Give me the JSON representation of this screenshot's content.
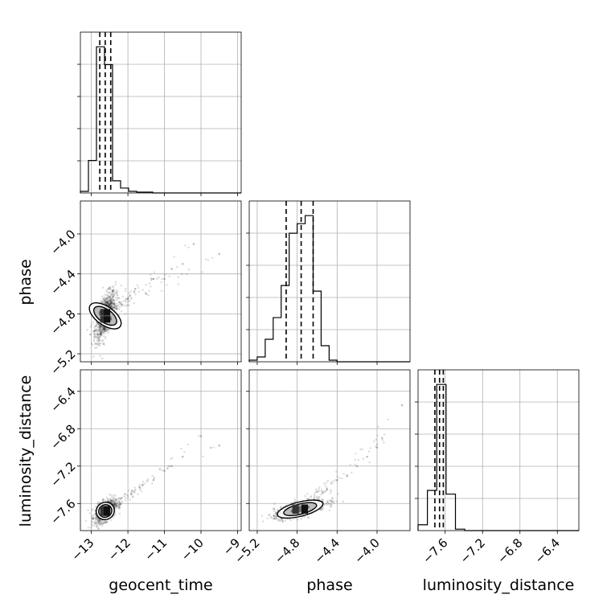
{
  "chart_data": {
    "type": "corner",
    "parameters": [
      "geocent_time",
      "phase",
      "luminosity_distance"
    ],
    "labels": {
      "x": [
        "geocent_time",
        "phase",
        "luminosity_distance"
      ],
      "y": [
        "phase",
        "luminosity_distance"
      ]
    },
    "ranges": {
      "geocent_time": [
        -13.3,
        -8.9
      ],
      "phase": [
        -5.28,
        -3.67
      ],
      "luminosity_distance": [
        -7.89,
        -6.17
      ]
    },
    "ticks": {
      "geocent_time": {
        "values": [
          -13,
          -12,
          -11,
          -10,
          -9
        ],
        "labels": [
          "−13",
          "−12",
          "−11",
          "−10",
          "−9"
        ]
      },
      "phase": {
        "values": [
          -5.2,
          -4.8,
          -4.4,
          -4.0
        ],
        "labels": [
          "−5.2",
          "−4.8",
          "−4.4",
          "−4.0"
        ]
      },
      "luminosity_distance": {
        "values": [
          -7.6,
          -7.2,
          -6.8,
          -6.4
        ],
        "labels": [
          "−7.6",
          "−7.2",
          "−6.8",
          "−6.4"
        ]
      }
    },
    "grid": true,
    "histograms": [
      {
        "param": "geocent_time",
        "bin_edges": [
          -13.3,
          -13.08,
          -12.86,
          -12.64,
          -12.42,
          -12.2,
          -11.98,
          -11.76,
          -11.54,
          -11.32,
          -11.1
        ],
        "counts": [
          2,
          40,
          180,
          158,
          15,
          6,
          2,
          1,
          1,
          0
        ],
        "quantiles": [
          -12.77,
          -12.62,
          -12.47
        ]
      },
      {
        "param": "phase",
        "bin_edges": [
          -5.28,
          -5.2,
          -5.12,
          -5.04,
          -4.96,
          -4.88,
          -4.8,
          -4.72,
          -4.64,
          -4.56,
          -4.48,
          -4.4,
          -4.32
        ],
        "counts": [
          2,
          6,
          28,
          55,
          95,
          160,
          172,
          182,
          88,
          20,
          2,
          0
        ],
        "quantiles": [
          -4.91,
          -4.76,
          -4.64
        ]
      },
      {
        "param": "luminosity_distance",
        "bin_edges": [
          -7.89,
          -7.79,
          -7.69,
          -7.59,
          -7.49,
          -7.39,
          -7.29
        ],
        "counts": [
          8,
          55,
          200,
          50,
          2,
          0
        ],
        "quantiles": [
          -7.71,
          -7.66,
          -7.62
        ]
      }
    ],
    "scatter_panels": [
      {
        "x": "geocent_time",
        "y": "phase",
        "mean": [
          -12.62,
          -4.82
        ],
        "sd": [
          0.14,
          0.12
        ],
        "rho": 0.6,
        "outliers": [
          [
            -12.2,
            -4.7
          ],
          [
            -12.0,
            -4.65
          ],
          [
            -11.8,
            -4.55
          ],
          [
            -11.5,
            -4.6
          ],
          [
            -11.3,
            -4.45
          ],
          [
            -11.0,
            -4.45
          ],
          [
            -10.8,
            -4.35
          ],
          [
            -10.5,
            -4.3
          ],
          [
            -10.2,
            -4.1
          ],
          [
            -9.5,
            -4.2
          ]
        ]
      },
      {
        "x": "geocent_time",
        "y": "luminosity_distance",
        "mean": [
          -12.62,
          -7.68
        ],
        "sd": [
          0.14,
          0.06
        ],
        "rho": 0.5,
        "outliers": [
          [
            -12.2,
            -7.55
          ],
          [
            -11.9,
            -7.5
          ],
          [
            -11.6,
            -7.4
          ],
          [
            -11.3,
            -7.35
          ],
          [
            -11.0,
            -7.25
          ],
          [
            -10.8,
            -7.2
          ],
          [
            -10.5,
            -7.1
          ],
          [
            -10.0,
            -6.88
          ],
          [
            -9.5,
            -6.98
          ]
        ]
      },
      {
        "x": "phase",
        "y": "luminosity_distance",
        "mean": [
          -4.77,
          -7.66
        ],
        "sd": [
          0.13,
          0.05
        ],
        "rho": 0.7,
        "outliers": [
          [
            -4.5,
            -7.45
          ],
          [
            -4.4,
            -7.35
          ],
          [
            -4.3,
            -7.3
          ],
          [
            -4.2,
            -7.2
          ],
          [
            -4.1,
            -7.1
          ],
          [
            -4.0,
            -7.0
          ],
          [
            -3.95,
            -6.9
          ],
          [
            -3.75,
            -6.55
          ]
        ]
      }
    ]
  }
}
